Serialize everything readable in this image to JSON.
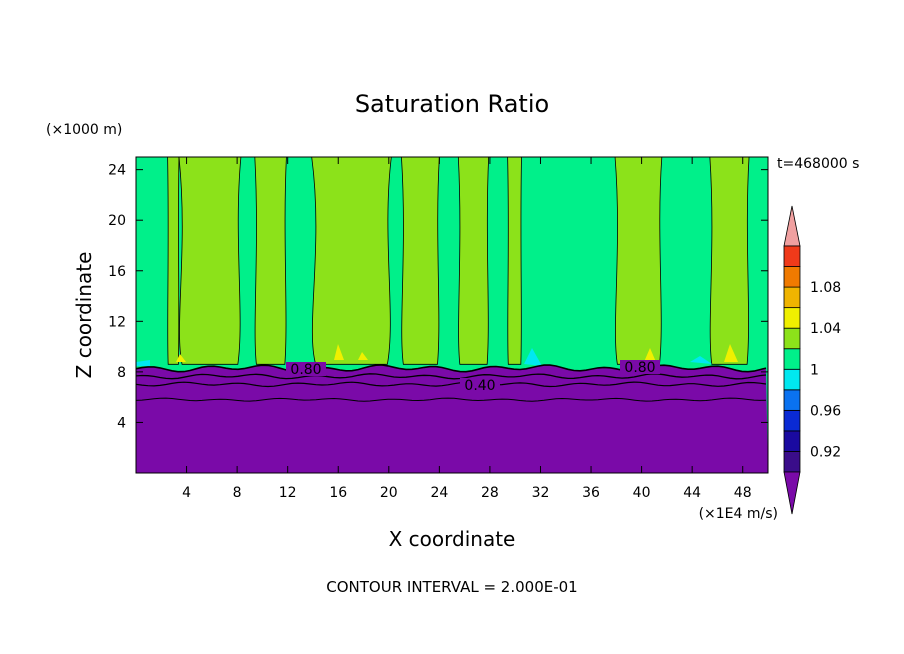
{
  "chart_data": {
    "type": "heatmap",
    "title": "Saturation Ratio",
    "xlabel": "X coordinate",
    "ylabel": "Z coordinate",
    "x_units": "(×1E4 m/s)",
    "y_units": "(×1000 m)",
    "time_label": "t=468000 s",
    "footer": "CONTOUR INTERVAL = 2.000E-01",
    "xlim": [
      0,
      50
    ],
    "ylim": [
      0,
      25
    ],
    "x_ticks": [
      "4",
      "8",
      "12",
      "16",
      "20",
      "24",
      "28",
      "32",
      "36",
      "40",
      "44",
      "48"
    ],
    "y_ticks": [
      "4",
      "8",
      "12",
      "16",
      "20",
      "24"
    ],
    "x_tick_values": [
      4,
      8,
      12,
      16,
      20,
      24,
      28,
      32,
      36,
      40,
      44,
      48
    ],
    "y_tick_values": [
      4,
      8,
      12,
      16,
      20,
      24
    ],
    "contour_labels": [
      "0.80",
      "0.40",
      "0.80"
    ],
    "colorbar": {
      "levels": [
        {
          "color": "#3a0d8a"
        },
        {
          "color": "#1a0aa0"
        },
        {
          "color": "#0a2ad4"
        },
        {
          "color": "#0a72f0"
        },
        {
          "color": "#00e8f0"
        },
        {
          "color": "#00f08a"
        },
        {
          "color": "#8ce21a"
        },
        {
          "color": "#f0f000"
        },
        {
          "color": "#f0b400"
        },
        {
          "color": "#f07a00"
        },
        {
          "color": "#f03a1a"
        }
      ],
      "under_color": "#7a0aa8",
      "over_color": "#f0a0a0",
      "labels": [
        "1.08",
        "1.04",
        "1",
        "0.96",
        "0.92"
      ],
      "label_values": [
        1.08,
        1.04,
        1.0,
        0.96,
        0.92
      ]
    },
    "regions": {
      "dry_layer_color": "#7a0aa8",
      "dry_layer_top_km": 8.6,
      "background_color": "#00f08a",
      "saturated_color": "#8ce21a",
      "saturated_columns_x": [
        [
          2.5,
          3.4
        ],
        [
          3.4,
          8.3
        ],
        [
          9.4,
          11.9
        ],
        [
          13.9,
          20.2
        ],
        [
          21.0,
          24.0
        ],
        [
          25.5,
          27.9
        ],
        [
          29.4,
          30.5
        ],
        [
          37.9,
          41.6
        ],
        [
          45.4,
          48.5
        ]
      ]
    }
  }
}
